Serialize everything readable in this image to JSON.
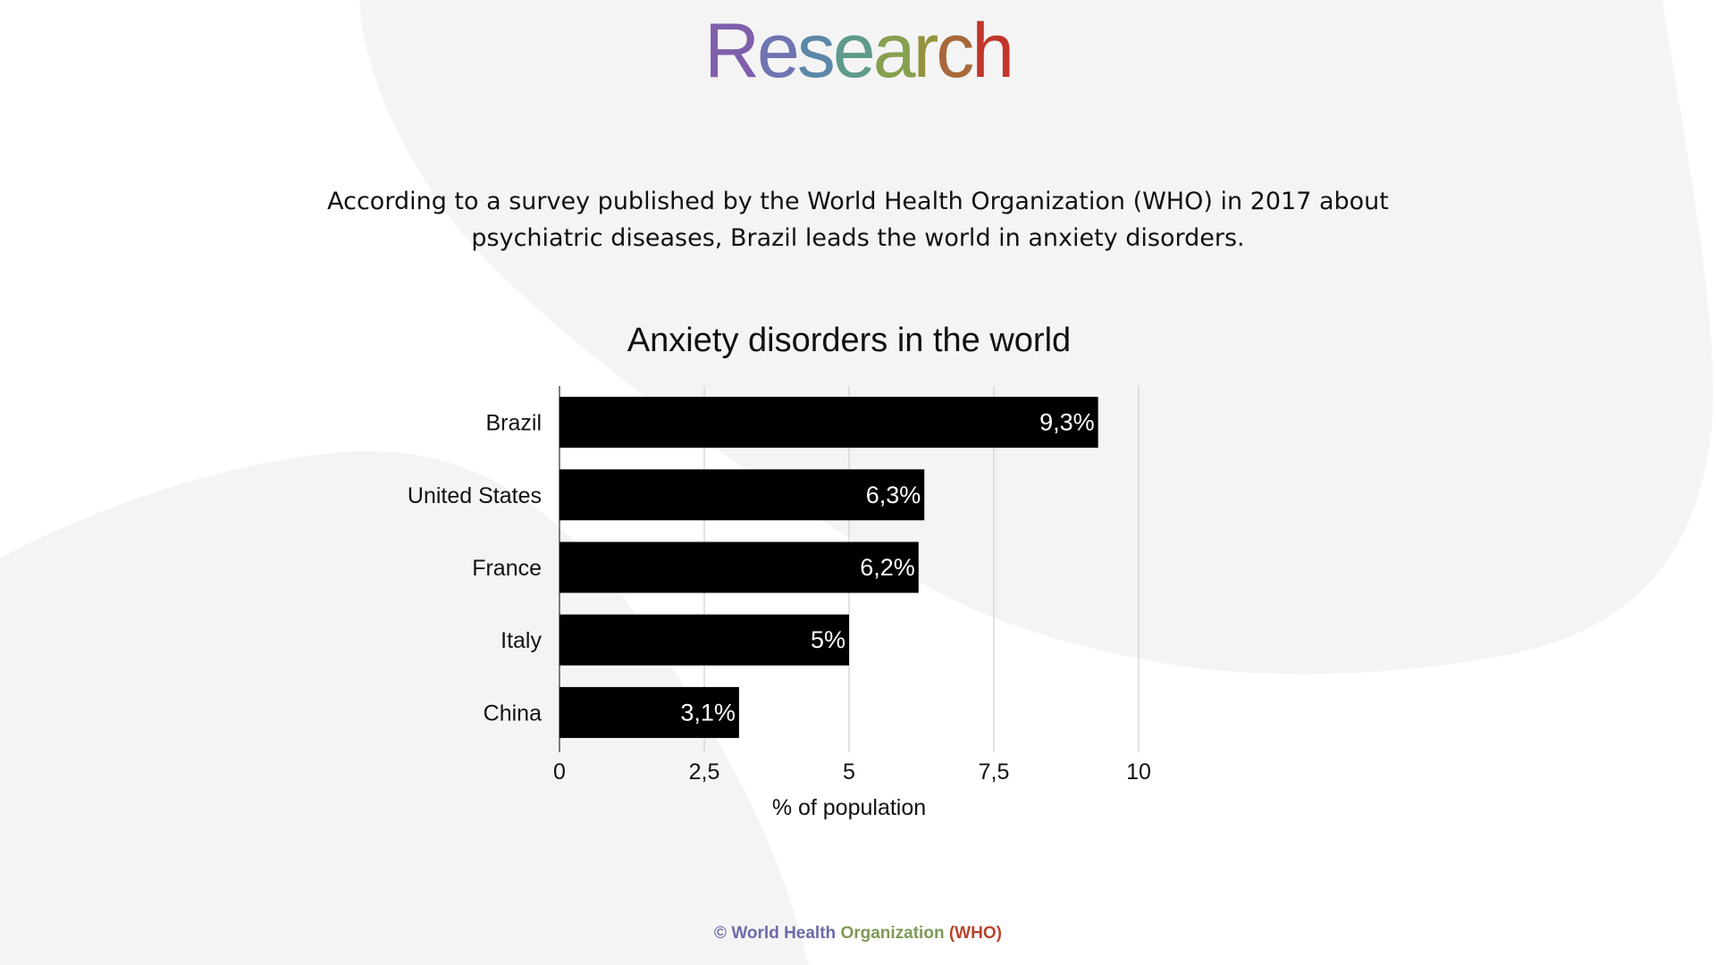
{
  "header": {
    "title_letters": [
      "R",
      "e",
      "s",
      "e",
      "a",
      "r",
      "c",
      "h"
    ],
    "title_colors": [
      "#7f5fab",
      "#6f74b2",
      "#5b87a8",
      "#5f9a8c",
      "#86a04f",
      "#93933d",
      "#a8693a",
      "#c2352a"
    ]
  },
  "intro": {
    "text": "According to a survey published by the World Health Organization (WHO) in 2017 about psychiatric diseases, Brazil leads the world in anxiety disorders."
  },
  "chart_data": {
    "type": "bar",
    "orientation": "horizontal",
    "title": "Anxiety disorders in the world",
    "categories": [
      "Brazil",
      "United States",
      "France",
      "Italy",
      "China"
    ],
    "values": [
      9.3,
      6.3,
      6.2,
      5,
      3.1
    ],
    "data_labels": [
      "9,3%",
      "6,3%",
      "6,2%",
      "5%",
      "3,1%"
    ],
    "xlabel": "% of population",
    "ylabel": "",
    "xlim": [
      0,
      10
    ],
    "xticks": [
      0,
      2.5,
      5,
      7.5,
      10
    ],
    "xtick_labels": [
      "0",
      "2,5",
      "5",
      "7,5",
      "10"
    ],
    "bar_color": "#000000",
    "label_color": "#ffffff",
    "grid": true
  },
  "footer": {
    "parts": [
      {
        "text": "© World Health ",
        "color": "#6d6aa8"
      },
      {
        "text": "Organization ",
        "color": "#7f9a55"
      },
      {
        "text": "(WHO)",
        "color": "#b8442e"
      }
    ]
  }
}
